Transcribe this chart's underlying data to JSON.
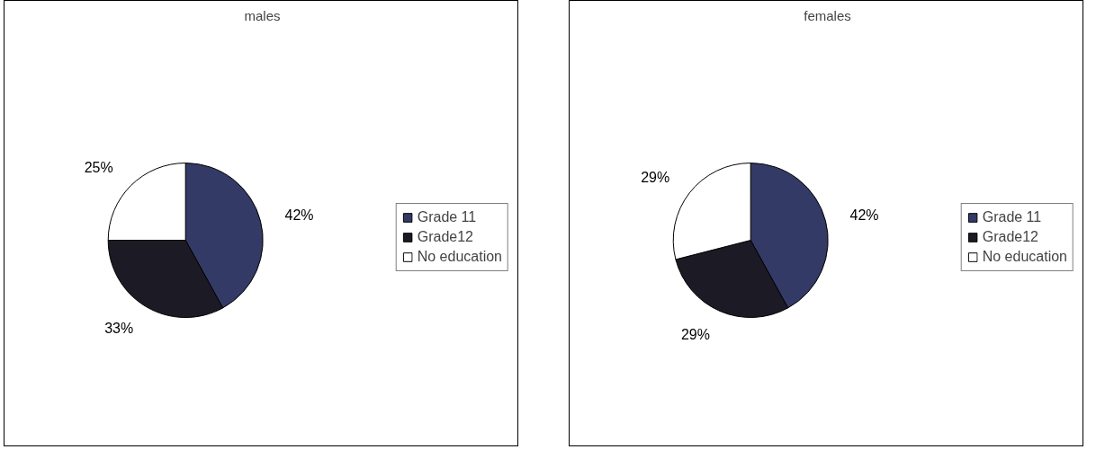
{
  "chart_data": [
    {
      "type": "pie",
      "title": "males",
      "categories": [
        "Grade 11",
        "Grade12",
        "No education"
      ],
      "values": [
        42,
        33,
        25
      ],
      "colors": [
        "#333a66",
        "#1c1a24",
        "#ffffff"
      ],
      "value_labels": [
        "42%",
        "33%",
        "25%"
      ],
      "legend": "right"
    },
    {
      "type": "pie",
      "title": "females",
      "categories": [
        "Grade 11",
        "Grade12",
        "No education"
      ],
      "values": [
        42,
        29,
        29
      ],
      "colors": [
        "#333a66",
        "#1c1a24",
        "#ffffff"
      ],
      "value_labels": [
        "42%",
        "29%",
        "29%"
      ],
      "legend": "right"
    }
  ]
}
